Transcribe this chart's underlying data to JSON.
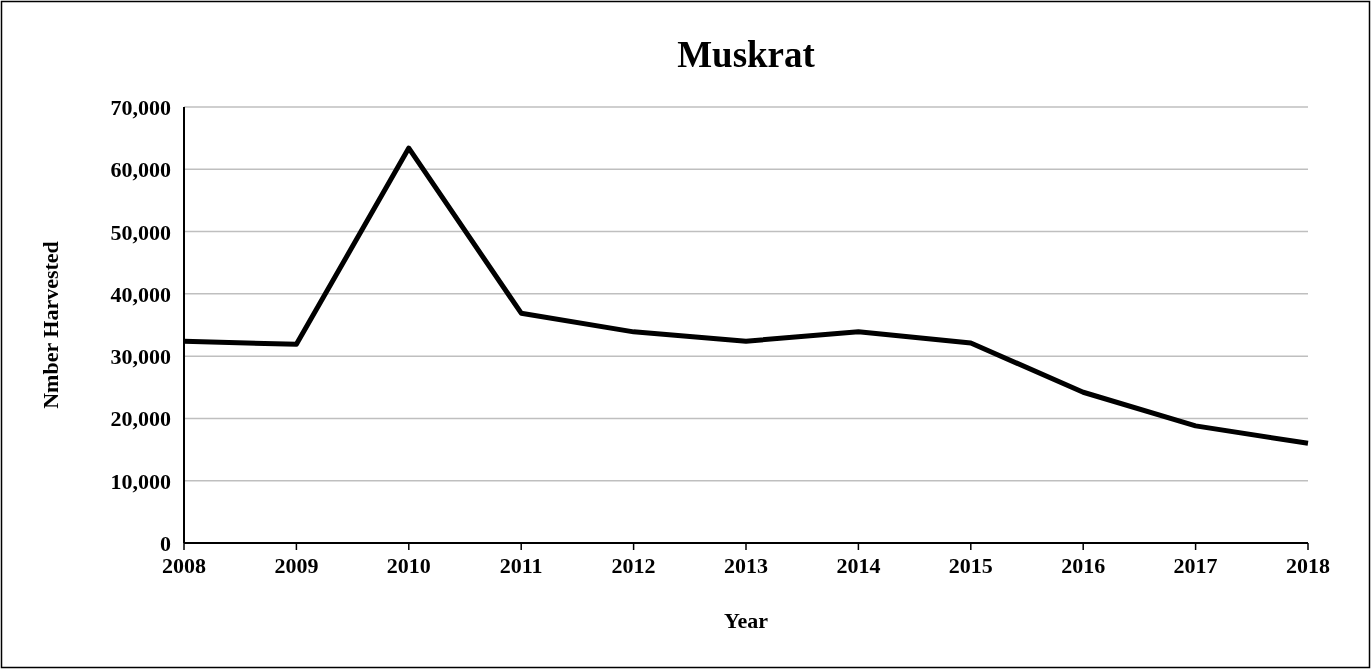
{
  "chart_data": {
    "type": "line",
    "title": "Muskrat",
    "xlabel": "Year",
    "ylabel": "Nmber Harvested",
    "x": [
      2008,
      2009,
      2010,
      2011,
      2012,
      2013,
      2014,
      2015,
      2016,
      2017,
      2018
    ],
    "series": [
      {
        "color": "#000000",
        "values": [
          32400,
          31900,
          63400,
          36900,
          33900,
          32400,
          33900,
          32100,
          24200,
          18800,
          16000
        ]
      }
    ],
    "xlim": [
      2008,
      2018
    ],
    "xticks": [
      2008,
      2009,
      2010,
      2011,
      2012,
      2013,
      2014,
      2015,
      2016,
      2017,
      2018
    ],
    "ylim": [
      0,
      70000
    ],
    "yticks": [
      {
        "value": 0,
        "label": "0"
      },
      {
        "value": 10000,
        "label": "10,000"
      },
      {
        "value": 20000,
        "label": "20,000"
      },
      {
        "value": 30000,
        "label": "30,000"
      },
      {
        "value": 40000,
        "label": "40,000"
      },
      {
        "value": 50000,
        "label": "50,000"
      },
      {
        "value": 60000,
        "label": "60,000"
      },
      {
        "value": 70000,
        "label": "70,000"
      }
    ],
    "grid": "y",
    "marker": "none",
    "line_style": "solid"
  }
}
